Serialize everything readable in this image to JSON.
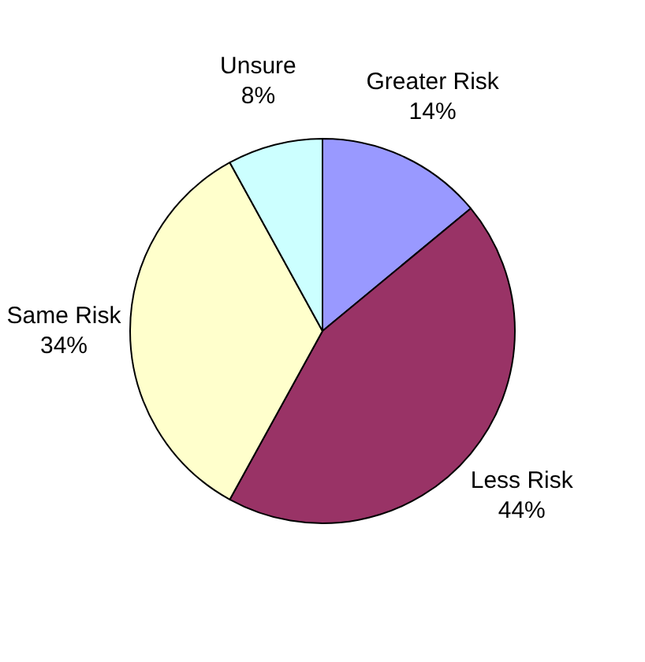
{
  "chart_data": {
    "type": "pie",
    "categories": [
      "Greater Risk",
      "Less Risk",
      "Same Risk",
      "Unsure"
    ],
    "values": [
      14,
      44,
      34,
      8
    ],
    "colors": [
      "#9999ff",
      "#993366",
      "#ffffcc",
      "#ccffff"
    ],
    "value_labels": [
      "14%",
      "44%",
      "34%",
      "8%"
    ],
    "legend": false
  }
}
